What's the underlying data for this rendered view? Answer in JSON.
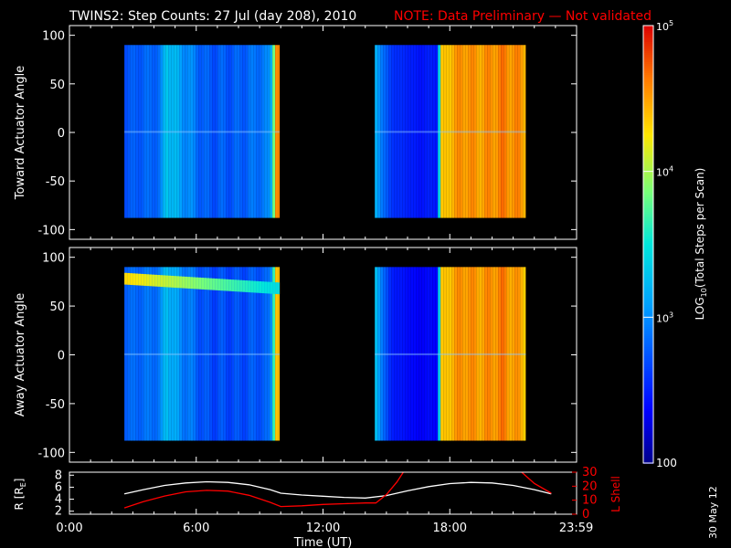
{
  "title": {
    "main": "TWINS2: Step Counts: 27 Jul (day 208), 2010",
    "note": "NOTE: Data Preliminary — Not validated",
    "note_color": "#ff0000"
  },
  "stamp": "30 May 12",
  "chart_data": [
    {
      "type": "heatmap",
      "name_shown": "",
      "ylabel": "Toward Actuator Angle",
      "xlim": [
        0,
        24
      ],
      "ylim": [
        -110,
        110
      ],
      "yticks": [
        "100",
        "50",
        "0",
        "-50",
        "-100"
      ],
      "ytick_values": [
        100,
        50,
        0,
        -50,
        -100
      ],
      "data_y_range": [
        -88,
        90
      ],
      "blocks": [
        {
          "x_start": 2.6,
          "x_end": 9.95
        },
        {
          "x_start": 14.45,
          "x_end": 21.6
        }
      ],
      "time_profile": [
        {
          "x": 2.6,
          "log": 2.72
        },
        {
          "x": 3.2,
          "log": 2.78
        },
        {
          "x": 4.3,
          "log": 2.85
        },
        {
          "x": 4.6,
          "log": 3.35
        },
        {
          "x": 5.2,
          "log": 3.1
        },
        {
          "x": 6.5,
          "log": 2.75
        },
        {
          "x": 8.0,
          "log": 2.78
        },
        {
          "x": 9.5,
          "log": 2.95
        },
        {
          "x": 9.8,
          "log": 4.6
        },
        {
          "x": 14.45,
          "log": 3.2
        },
        {
          "x": 15.2,
          "log": 2.6
        },
        {
          "x": 16.5,
          "log": 2.45
        },
        {
          "x": 17.4,
          "log": 2.5
        },
        {
          "x": 17.6,
          "log": 4.3
        },
        {
          "x": 18.5,
          "log": 4.55
        },
        {
          "x": 19.5,
          "log": 4.5
        },
        {
          "x": 20.5,
          "log": 4.6
        },
        {
          "x": 21.6,
          "log": 4.5
        }
      ]
    },
    {
      "type": "heatmap",
      "ylabel": "Away Actuator Angle",
      "xlim": [
        0,
        24
      ],
      "ylim": [
        -110,
        110
      ],
      "yticks": [
        "100",
        "50",
        "0",
        "-50",
        "-100"
      ],
      "ytick_values": [
        100,
        50,
        0,
        -50,
        -100
      ],
      "data_y_range": [
        -88,
        90
      ],
      "blocks": [
        {
          "x_start": 2.6,
          "x_end": 9.95
        },
        {
          "x_start": 14.45,
          "x_end": 21.6
        }
      ],
      "bright_band_y": [
        65,
        85
      ],
      "time_profile": [
        {
          "x": 2.6,
          "log": 2.8
        },
        {
          "x": 3.5,
          "log": 2.85
        },
        {
          "x": 4.3,
          "log": 2.9
        },
        {
          "x": 4.6,
          "log": 3.3
        },
        {
          "x": 5.2,
          "log": 3.0
        },
        {
          "x": 6.5,
          "log": 2.7
        },
        {
          "x": 8.0,
          "log": 2.7
        },
        {
          "x": 9.5,
          "log": 2.8
        },
        {
          "x": 9.8,
          "log": 4.4
        },
        {
          "x": 14.45,
          "log": 3.3
        },
        {
          "x": 15.2,
          "log": 2.5
        },
        {
          "x": 16.5,
          "log": 2.35
        },
        {
          "x": 17.4,
          "log": 2.4
        },
        {
          "x": 17.6,
          "log": 4.3
        },
        {
          "x": 18.5,
          "log": 4.55
        },
        {
          "x": 19.5,
          "log": 4.5
        },
        {
          "x": 20.5,
          "log": 4.6
        },
        {
          "x": 21.6,
          "log": 4.4
        }
      ]
    },
    {
      "type": "line",
      "ylabel_left": "R [R",
      "ylabel_left_sub": "E",
      "ylabel_left_close": "]",
      "ylabel_right": "L Shell",
      "ylabel_right_color": "#ff0000",
      "xlabel": "Time (UT)",
      "xlim": [
        0,
        24
      ],
      "xticks": [
        "0:00",
        "6:00",
        "12:00",
        "18:00",
        "23:59"
      ],
      "xtick_values": [
        0,
        6,
        12,
        18,
        23.983
      ],
      "yleft_lim": [
        1.5,
        8.5
      ],
      "yleft_ticks": [
        "8",
        "6",
        "4",
        "2"
      ],
      "yleft_tick_values": [
        8,
        6,
        4,
        2
      ],
      "yright_lim": [
        0,
        30
      ],
      "yright_ticks": [
        "30",
        "20",
        "10",
        "0"
      ],
      "yright_tick_values": [
        30,
        20,
        10,
        0
      ],
      "series": [
        {
          "color": "#ffffff",
          "axis": "left",
          "x": [
            2.6,
            3.5,
            4.5,
            5.5,
            6.5,
            7.5,
            8.5,
            9.5,
            10.0,
            11.0,
            12.0,
            13.0,
            14.0,
            15.0,
            16.0,
            17.0,
            18.0,
            19.0,
            20.0,
            21.0,
            22.0,
            22.8
          ],
          "y": [
            4.9,
            5.6,
            6.3,
            6.7,
            6.9,
            6.8,
            6.4,
            5.6,
            5.0,
            4.7,
            4.5,
            4.3,
            4.2,
            4.6,
            5.4,
            6.1,
            6.6,
            6.8,
            6.7,
            6.3,
            5.6,
            4.9
          ]
        },
        {
          "color": "#ff0000",
          "axis": "right",
          "x": [
            2.6,
            3.5,
            4.5,
            5.5,
            6.5,
            7.5,
            8.5,
            9.5,
            10.0,
            11.0,
            12.0,
            13.0,
            14.0,
            14.5,
            15.0,
            15.5,
            15.8
          ],
          "y": [
            4.5,
            9.0,
            13.0,
            16.0,
            17.0,
            16.5,
            13.5,
            8.5,
            5.5,
            6.0,
            7.0,
            7.5,
            8.0,
            8.0,
            14.0,
            23.0,
            30.0
          ]
        },
        {
          "color": "#ff0000",
          "axis": "right",
          "x": [
            21.4,
            22.0,
            22.8
          ],
          "y": [
            30.0,
            22.0,
            15.0
          ]
        }
      ]
    }
  ],
  "colorbar": {
    "label": "LOG",
    "label_sub": "10",
    "label_rest": "(Total Steps per Scan)",
    "ticks": [
      "10",
      "10",
      "10"
    ],
    "tick_exps": [
      "5",
      "4",
      "3"
    ],
    "tick_log_values": [
      5,
      4,
      3
    ],
    "bottom_label": "100",
    "range_log": [
      2,
      5
    ]
  }
}
